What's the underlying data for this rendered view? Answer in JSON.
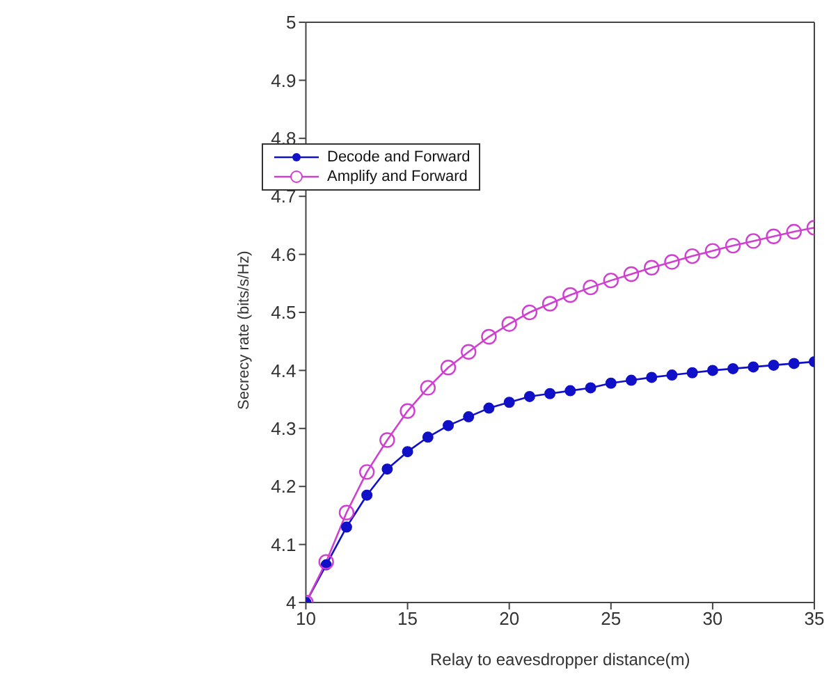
{
  "chart_data": {
    "type": "line",
    "xlabel": "Relay to eavesdropper distance(m)",
    "ylabel": "Secrecy rate (bits/s/Hz)",
    "x": [
      10,
      11,
      12,
      13,
      14,
      15,
      16,
      17,
      18,
      19,
      20,
      21,
      22,
      23,
      24,
      25,
      26,
      27,
      28,
      29,
      30,
      31,
      32,
      33,
      34,
      35
    ],
    "series": [
      {
        "name": "Decode and Forward",
        "color": "#1010c8",
        "marker": "circle",
        "values": [
          4.0,
          4.065,
          4.13,
          4.185,
          4.23,
          4.26,
          4.285,
          4.305,
          4.32,
          4.335,
          4.345,
          4.355,
          4.36,
          4.365,
          4.37,
          4.378,
          4.383,
          4.388,
          4.392,
          4.396,
          4.4,
          4.403,
          4.406,
          4.409,
          4.412,
          4.415
        ]
      },
      {
        "name": "Amplify and Forward",
        "color": "#d040d0",
        "marker": "circle",
        "values": [
          4.0,
          4.07,
          4.155,
          4.225,
          4.28,
          4.33,
          4.37,
          4.405,
          4.432,
          4.458,
          4.48,
          4.5,
          4.515,
          4.53,
          4.543,
          4.555,
          4.566,
          4.577,
          4.587,
          4.597,
          4.606,
          4.615,
          4.623,
          4.631,
          4.639,
          4.646
        ]
      }
    ],
    "xlim": [
      10,
      35
    ],
    "xticks": [
      10,
      15,
      20,
      25,
      30,
      35
    ],
    "ylim": [
      4,
      5
    ],
    "yticks": [
      4,
      4.1,
      4.2,
      4.3,
      4.4,
      4.5,
      4.6,
      4.7,
      4.8,
      4.9,
      5
    ],
    "grid": false,
    "legend": "top left"
  }
}
